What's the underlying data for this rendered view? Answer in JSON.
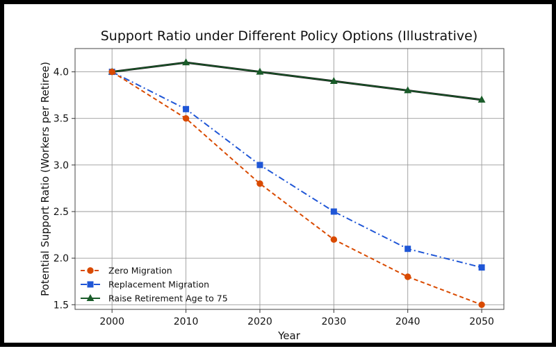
{
  "chart_data": {
    "type": "line",
    "title": "Support Ratio under Different Policy Options (Illustrative)",
    "xlabel": "Year",
    "ylabel": "Potential Support Ratio (Workers per Retiree)",
    "x": [
      2000,
      2010,
      2020,
      2030,
      2040,
      2050
    ],
    "xticks": [
      "2000",
      "2010",
      "2020",
      "2030",
      "2040",
      "2050"
    ],
    "yticks": [
      "1.5",
      "2.0",
      "2.5",
      "3.0",
      "3.5",
      "4.0"
    ],
    "ytick_values": [
      1.5,
      2.0,
      2.5,
      3.0,
      3.5,
      4.0
    ],
    "xlim": [
      1995,
      2053
    ],
    "ylim": [
      1.45,
      4.25
    ],
    "grid": true,
    "legend_position": "bottom-left",
    "series": [
      {
        "name": "Zero Migration",
        "values": [
          4.0,
          3.5,
          2.8,
          2.2,
          1.8,
          1.5
        ],
        "color": "#d94a00",
        "marker": "circle",
        "line_style": "dashed"
      },
      {
        "name": "Replacement Migration",
        "values": [
          4.0,
          3.6,
          3.0,
          2.5,
          2.1,
          1.9
        ],
        "color": "#1f56d6",
        "marker": "square",
        "line_style": "dash-dot"
      },
      {
        "name": "Raise Retirement Age to 75",
        "values": [
          4.0,
          4.1,
          4.0,
          3.9,
          3.8,
          3.7
        ],
        "color": "#1a5c2a",
        "marker": "triangle",
        "line_style": "solid"
      }
    ]
  }
}
